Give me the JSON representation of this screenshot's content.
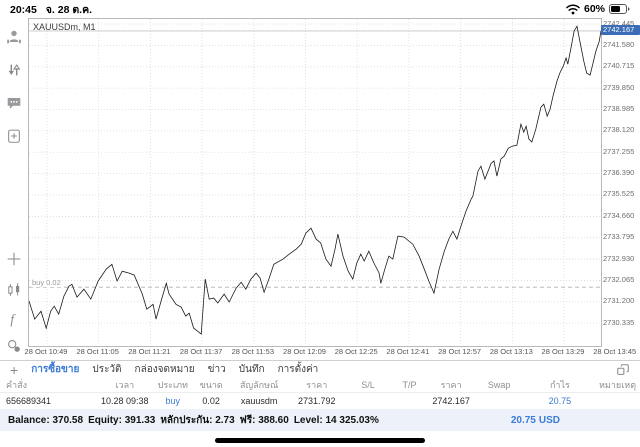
{
  "status_bar": {
    "time": "20:45",
    "date": "จ. 28 ต.ค.",
    "battery_percent": "60%",
    "icons": [
      "wifi-icon",
      "battery-icon"
    ]
  },
  "sidebar": {
    "top_icons": [
      "account-icon",
      "trade-arrows-icon",
      "chat-icon",
      "new-order-icon"
    ],
    "tool_icons": [
      "crosshair-icon",
      "chart-type-icon",
      "indicators-icon",
      "objects-icon"
    ],
    "timeframe_label": "M1"
  },
  "chart": {
    "symbol_label": "XAUUSDm, M1",
    "buy_line_label": "buy 0.02",
    "current_price_label": "2742.167"
  },
  "colors": {
    "accent": "#3a7bd5",
    "price_flag_bg": "#3a6db5",
    "line": "#1a1a1a",
    "grid": "#d9d9d9",
    "buy_line": "#b0b0b0",
    "current_line": "#c4c4c4"
  },
  "chart_data": {
    "type": "line",
    "title": "XAUUSDm, M1",
    "symbol": "XAUUSDm",
    "timeframe": "M1",
    "ylim": [
      2729.41,
      2742.65
    ],
    "y_tick_step": 0.865,
    "y_ticks": [
      "2742.445",
      "2741.580",
      "2740.715",
      "2739.850",
      "2738.985",
      "2738.120",
      "2737.255",
      "2736.390",
      "2735.525",
      "2734.660",
      "2733.795",
      "2732.930",
      "2732.065",
      "2731.200",
      "2730.335"
    ],
    "x_ticks": [
      "28 Oct 10:49",
      "28 Oct 11:05",
      "28 Oct 11:21",
      "28 Oct 11:37",
      "28 Oct 11:53",
      "28 Oct 12:09",
      "28 Oct 12:25",
      "28 Oct 12:41",
      "28 Oct 12:57",
      "28 Oct 13:13",
      "28 Oct 13:29",
      "28 Oct 13:45"
    ],
    "grid": true,
    "current_price": 2742.167,
    "buy_price": 2731.792,
    "points": [
      [
        0,
        2731.23
      ],
      [
        0.01,
        2730.5
      ],
      [
        0.021,
        2730.82
      ],
      [
        0.03,
        2730.13
      ],
      [
        0.038,
        2730.82
      ],
      [
        0.044,
        2731.02
      ],
      [
        0.052,
        2730.7
      ],
      [
        0.061,
        2731.43
      ],
      [
        0.07,
        2731.83
      ],
      [
        0.075,
        2731.91
      ],
      [
        0.084,
        2731.39
      ],
      [
        0.096,
        2731.71
      ],
      [
        0.108,
        2731.31
      ],
      [
        0.121,
        2732.04
      ],
      [
        0.135,
        2732.52
      ],
      [
        0.145,
        2732.72
      ],
      [
        0.154,
        2732.04
      ],
      [
        0.163,
        2732.44
      ],
      [
        0.175,
        2732.36
      ],
      [
        0.184,
        2732.28
      ],
      [
        0.198,
        2731.51
      ],
      [
        0.206,
        2730.9
      ],
      [
        0.217,
        2731.1
      ],
      [
        0.222,
        2730.5
      ],
      [
        0.231,
        2731.23
      ],
      [
        0.24,
        2731.95
      ],
      [
        0.245,
        2731.51
      ],
      [
        0.257,
        2731.1
      ],
      [
        0.266,
        2730.98
      ],
      [
        0.274,
        2730.62
      ],
      [
        0.28,
        2730.74
      ],
      [
        0.288,
        2730.13
      ],
      [
        0.295,
        2730.01
      ],
      [
        0.301,
        2729.89
      ],
      [
        0.308,
        2732.12
      ],
      [
        0.315,
        2731.31
      ],
      [
        0.323,
        2731.35
      ],
      [
        0.33,
        2731.15
      ],
      [
        0.341,
        2731.51
      ],
      [
        0.35,
        2731.19
      ],
      [
        0.362,
        2731.75
      ],
      [
        0.371,
        2731.99
      ],
      [
        0.379,
        2731.71
      ],
      [
        0.388,
        2732.12
      ],
      [
        0.397,
        2732.36
      ],
      [
        0.404,
        2732.16
      ],
      [
        0.411,
        2731.59
      ],
      [
        0.42,
        2732.16
      ],
      [
        0.428,
        2732.72
      ],
      [
        0.444,
        2732.93
      ],
      [
        0.455,
        2733.13
      ],
      [
        0.467,
        2733.33
      ],
      [
        0.476,
        2733.53
      ],
      [
        0.484,
        2733.98
      ],
      [
        0.493,
        2734.18
      ],
      [
        0.502,
        2733.74
      ],
      [
        0.51,
        2733.58
      ],
      [
        0.519,
        2732.93
      ],
      [
        0.528,
        2732.64
      ],
      [
        0.535,
        2733.33
      ],
      [
        0.54,
        2733.94
      ],
      [
        0.549,
        2733.05
      ],
      [
        0.558,
        2732.44
      ],
      [
        0.566,
        2732.12
      ],
      [
        0.573,
        2732.77
      ],
      [
        0.58,
        2733.13
      ],
      [
        0.586,
        2732.85
      ],
      [
        0.594,
        2733.25
      ],
      [
        0.603,
        2732.77
      ],
      [
        0.612,
        2732.36
      ],
      [
        0.615,
        2731.95
      ],
      [
        0.622,
        2732.52
      ],
      [
        0.629,
        2733.05
      ],
      [
        0.636,
        2732.93
      ],
      [
        0.645,
        2733.86
      ],
      [
        0.656,
        2733.82
      ],
      [
        0.664,
        2733.66
      ],
      [
        0.671,
        2733.53
      ],
      [
        0.682,
        2733.05
      ],
      [
        0.691,
        2732.52
      ],
      [
        0.699,
        2732.04
      ],
      [
        0.708,
        2731.55
      ],
      [
        0.717,
        2732.52
      ],
      [
        0.726,
        2733.25
      ],
      [
        0.734,
        2733.74
      ],
      [
        0.741,
        2734.06
      ],
      [
        0.748,
        2733.74
      ],
      [
        0.755,
        2734.26
      ],
      [
        0.764,
        2734.87
      ],
      [
        0.773,
        2735.36
      ],
      [
        0.776,
        2735.48
      ],
      [
        0.785,
        2736.49
      ],
      [
        0.79,
        2736.69
      ],
      [
        0.797,
        2736.17
      ],
      [
        0.808,
        2736.81
      ],
      [
        0.813,
        2736.9
      ],
      [
        0.818,
        2736.29
      ],
      [
        0.825,
        2736.98
      ],
      [
        0.831,
        2737.1
      ],
      [
        0.838,
        2737.42
      ],
      [
        0.845,
        2737.5
      ],
      [
        0.853,
        2737.54
      ],
      [
        0.86,
        2738.39
      ],
      [
        0.865,
        2738.07
      ],
      [
        0.869,
        2738.31
      ],
      [
        0.874,
        2737.79
      ],
      [
        0.879,
        2737.67
      ],
      [
        0.886,
        2738.19
      ],
      [
        0.895,
        2739.08
      ],
      [
        0.9,
        2739.2
      ],
      [
        0.906,
        2738.72
      ],
      [
        0.911,
        2739
      ],
      [
        0.916,
        2739.53
      ],
      [
        0.923,
        2740.14
      ],
      [
        0.928,
        2740.46
      ],
      [
        0.934,
        2740.74
      ],
      [
        0.939,
        2741.07
      ],
      [
        0.942,
        2740.82
      ],
      [
        0.948,
        2741.55
      ],
      [
        0.953,
        2742.16
      ],
      [
        0.958,
        2742.36
      ],
      [
        0.963,
        2741.76
      ],
      [
        0.97,
        2740.94
      ],
      [
        0.975,
        2740.46
      ],
      [
        0.981,
        2740.38
      ],
      [
        0.986,
        2740.86
      ],
      [
        0.991,
        2741.35
      ],
      [
        0.997,
        2741.76
      ],
      [
        1,
        2742.17
      ]
    ]
  },
  "bottom_tabs": {
    "add_button": "+",
    "items": [
      {
        "label": "การซื้อขาย",
        "selected": true
      },
      {
        "label": "ประวัติ",
        "selected": false
      },
      {
        "label": "กล่องจดหมาย",
        "selected": false
      },
      {
        "label": "ข่าว",
        "selected": false
      },
      {
        "label": "บันทึก",
        "selected": false
      },
      {
        "label": "การตั้งค่า",
        "selected": false
      }
    ],
    "right_icon": "windows-layout-icon"
  },
  "orders_table": {
    "headers": [
      "คำสั่ง",
      "เวลา",
      "ประเภท",
      "ขนาด",
      "สัญลักษณ์",
      "ราคา",
      "S/L",
      "T/P",
      "ราคา",
      "Swap",
      "กำไร",
      "หมายเหตุ"
    ],
    "rows": [
      {
        "order": "656689341",
        "time": "10.28 09:38",
        "type": "buy",
        "volume": "0.02",
        "symbol": "xauusdm",
        "open_price": "2731.792",
        "sl": "",
        "tp": "",
        "price": "2742.167",
        "swap": "",
        "profit": "20.75",
        "comment": ""
      }
    ]
  },
  "account_summary": {
    "segments": [
      {
        "label": "Balance:",
        "value": "370.58"
      },
      {
        "label": "Equity:",
        "value": "391.33"
      },
      {
        "label": "หลักประกัน:",
        "value": "2.73"
      },
      {
        "label": "ฟรี:",
        "value": "388.60"
      },
      {
        "label": "Level:",
        "value": "14 325.03%"
      }
    ],
    "total_profit": "20.75",
    "currency": "USD"
  }
}
